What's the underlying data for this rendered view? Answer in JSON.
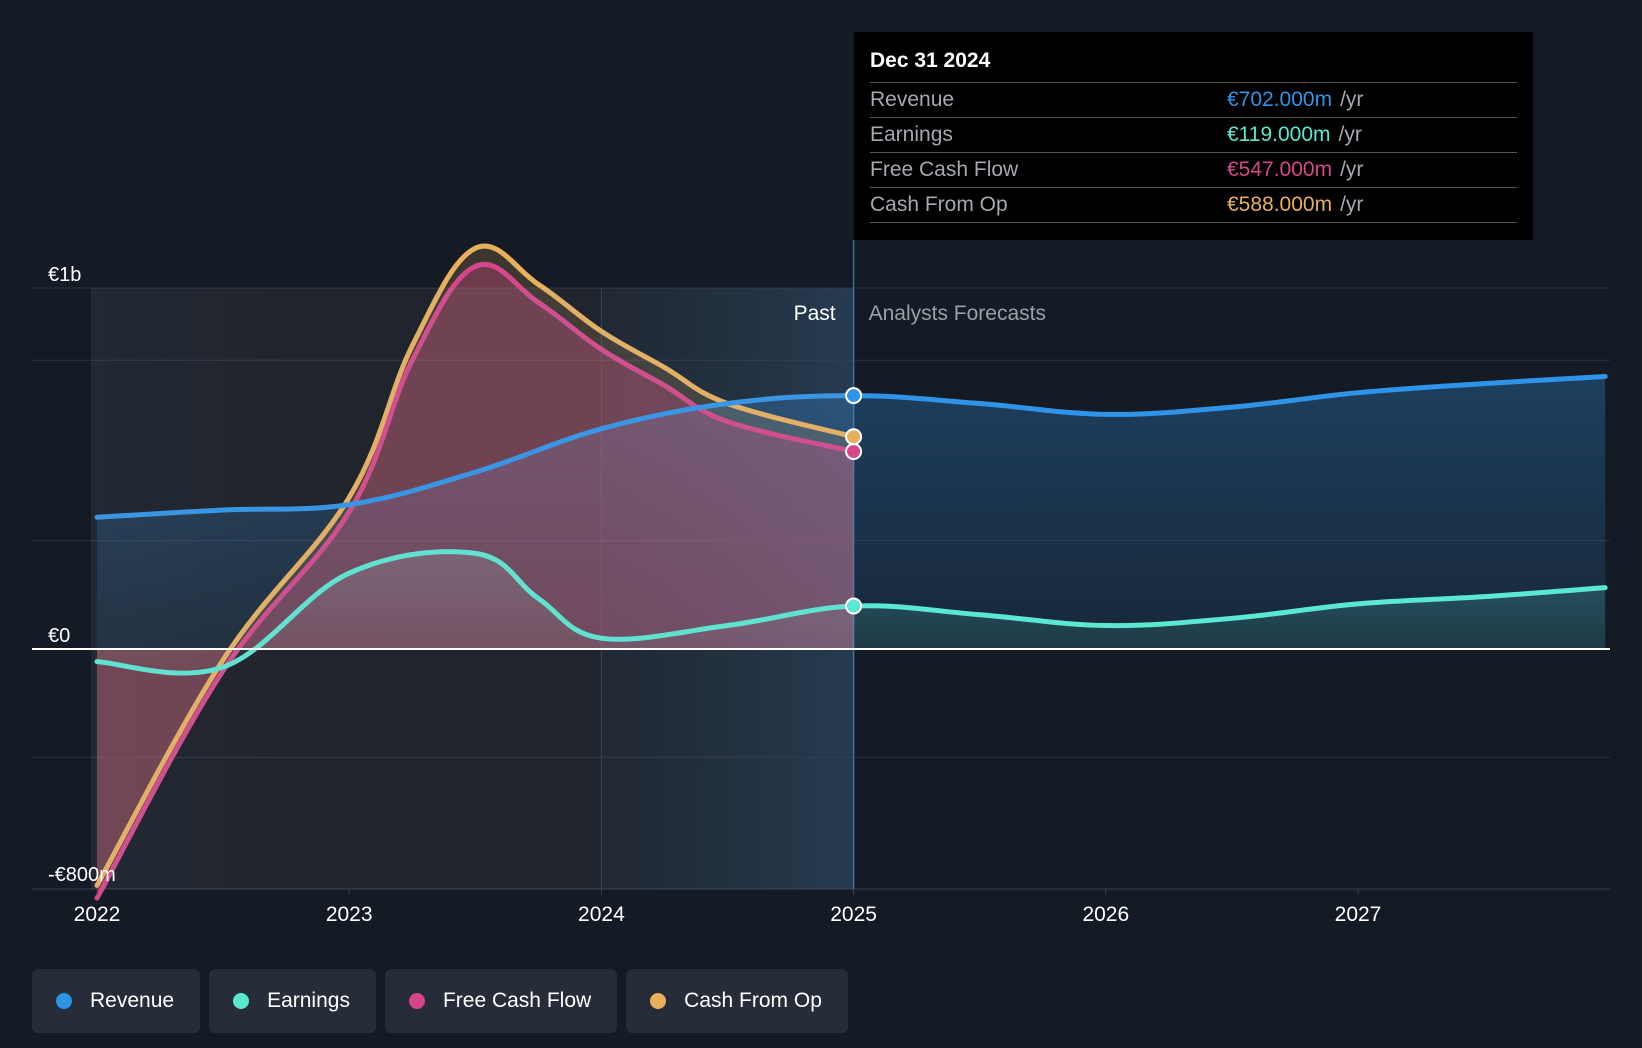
{
  "chart_data": {
    "type": "area",
    "title": "",
    "x_ticks": [
      "2022",
      "2023",
      "2024",
      "2025",
      "2026",
      "2027"
    ],
    "y_labels": [
      "€1b",
      "€0",
      "-€800m"
    ],
    "ylim": [
      -800,
      1200
    ],
    "xlim": [
      2022.0,
      2027.98
    ],
    "past_label": "Past",
    "forecast_label": "Analysts Forecasts",
    "divider_x": 2025.0,
    "highlight_start_x": 2024.0,
    "series": [
      {
        "name": "Revenue",
        "color": "#2f93e8",
        "points": [
          [
            2022.0,
            365
          ],
          [
            2022.5,
            385
          ],
          [
            2023.0,
            400
          ],
          [
            2023.5,
            490
          ],
          [
            2024.0,
            610
          ],
          [
            2024.5,
            680
          ],
          [
            2025.0,
            702
          ],
          [
            2025.5,
            680
          ],
          [
            2026.0,
            650
          ],
          [
            2026.5,
            670
          ],
          [
            2027.0,
            710
          ],
          [
            2027.5,
            735
          ],
          [
            2027.98,
            755
          ]
        ]
      },
      {
        "name": "Earnings",
        "color": "#5be8d2",
        "points": [
          [
            2022.0,
            -35
          ],
          [
            2022.5,
            -50
          ],
          [
            2023.0,
            210
          ],
          [
            2023.5,
            265
          ],
          [
            2023.75,
            140
          ],
          [
            2024.0,
            30
          ],
          [
            2024.5,
            65
          ],
          [
            2025.0,
            119
          ],
          [
            2025.5,
            95
          ],
          [
            2026.0,
            65
          ],
          [
            2026.5,
            85
          ],
          [
            2027.0,
            125
          ],
          [
            2027.5,
            145
          ],
          [
            2027.98,
            170
          ]
        ]
      },
      {
        "name": "Free Cash Flow",
        "color": "#d6468a",
        "points": [
          [
            2022.0,
            -690
          ],
          [
            2022.5,
            -60
          ],
          [
            2023.0,
            380
          ],
          [
            2023.25,
            800
          ],
          [
            2023.5,
            1060
          ],
          [
            2023.75,
            960
          ],
          [
            2024.0,
            830
          ],
          [
            2024.25,
            730
          ],
          [
            2024.5,
            630
          ],
          [
            2025.0,
            547
          ]
        ]
      },
      {
        "name": "Cash From Op",
        "color": "#e9b05c",
        "points": [
          [
            2022.0,
            -655
          ],
          [
            2022.5,
            -30
          ],
          [
            2023.0,
            420
          ],
          [
            2023.25,
            840
          ],
          [
            2023.5,
            1110
          ],
          [
            2023.75,
            1010
          ],
          [
            2024.0,
            880
          ],
          [
            2024.25,
            780
          ],
          [
            2024.5,
            680
          ],
          [
            2025.0,
            588
          ]
        ]
      }
    ]
  },
  "tooltip": {
    "date": "Dec 31 2024",
    "rows": [
      {
        "label": "Revenue",
        "value": "€702.000m",
        "unit": "/yr",
        "color": "#2f93e8"
      },
      {
        "label": "Earnings",
        "value": "€119.000m",
        "unit": "/yr",
        "color": "#5be8d2"
      },
      {
        "label": "Free Cash Flow",
        "value": "€547.000m",
        "unit": "/yr",
        "color": "#d6468a"
      },
      {
        "label": "Cash From Op",
        "value": "€588.000m",
        "unit": "/yr",
        "color": "#e9b05c"
      }
    ]
  },
  "legend": [
    {
      "label": "Revenue",
      "color": "#2f93e8"
    },
    {
      "label": "Earnings",
      "color": "#5be8d2"
    },
    {
      "label": "Free Cash Flow",
      "color": "#d6468a"
    },
    {
      "label": "Cash From Op",
      "color": "#e9b05c"
    }
  ]
}
